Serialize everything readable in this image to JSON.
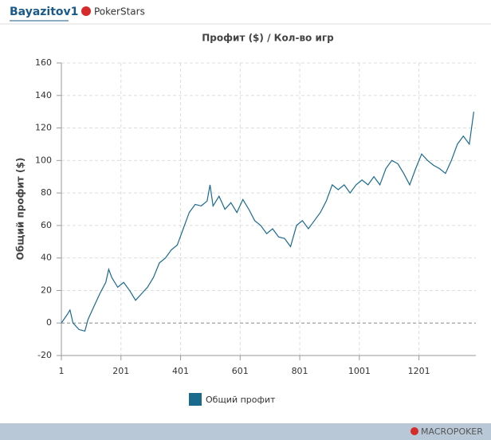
{
  "header": {
    "user": "Bayazitov1",
    "site": "PokerStars"
  },
  "chart_data": {
    "type": "line",
    "title": "Профит ($) / Кол-во игр",
    "y_label": "Общий профит ($)",
    "x": [
      1,
      20,
      30,
      40,
      60,
      80,
      90,
      110,
      130,
      150,
      160,
      170,
      190,
      210,
      230,
      250,
      270,
      290,
      310,
      330,
      350,
      370,
      390,
      410,
      430,
      450,
      470,
      490,
      500,
      510,
      530,
      550,
      570,
      590,
      610,
      630,
      650,
      670,
      690,
      710,
      730,
      750,
      770,
      790,
      810,
      830,
      850,
      870,
      890,
      910,
      930,
      950,
      970,
      990,
      1010,
      1030,
      1050,
      1070,
      1090,
      1110,
      1130,
      1150,
      1170,
      1190,
      1210,
      1230,
      1250,
      1270,
      1290,
      1310,
      1330,
      1350,
      1370,
      1385
    ],
    "series": [
      {
        "name": "Общий профит",
        "color": "#1a6a8e",
        "values": [
          0,
          5,
          8,
          0,
          -4,
          -5,
          2,
          10,
          18,
          25,
          33,
          28,
          22,
          25,
          20,
          14,
          18,
          22,
          28,
          37,
          40,
          45,
          48,
          58,
          68,
          73,
          72,
          75,
          85,
          72,
          78,
          70,
          74,
          68,
          76,
          70,
          63,
          60,
          55,
          58,
          53,
          52,
          47,
          60,
          63,
          58,
          63,
          68,
          75,
          85,
          82,
          85,
          80,
          85,
          88,
          85,
          90,
          85,
          95,
          100,
          98,
          92,
          85,
          95,
          104,
          100,
          97,
          95,
          92,
          100,
          110,
          115,
          110,
          130
        ]
      }
    ],
    "xlim": [
      1,
      1392
    ],
    "ylim": [
      -20,
      160
    ],
    "xticks": [
      1,
      201,
      401,
      601,
      801,
      1001,
      1201
    ],
    "yticks": [
      -20,
      0,
      20,
      40,
      60,
      80,
      100,
      120,
      140,
      160
    ],
    "grid": true
  },
  "footer": {
    "brand": "MACROPOKER"
  }
}
